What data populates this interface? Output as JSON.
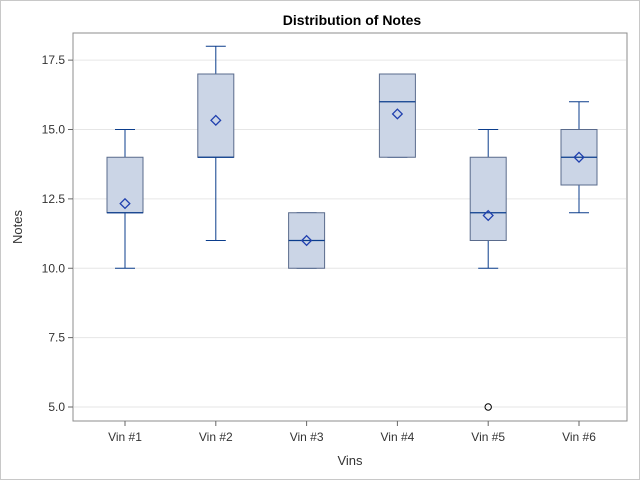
{
  "chart_data": {
    "type": "box",
    "title": "Distribution of Notes",
    "xlabel": "Vins",
    "ylabel": "Notes",
    "ylim": [
      4.6,
      18.5
    ],
    "yticks": [
      "5.0",
      "7.5",
      "10.0",
      "12.5",
      "15.0",
      "17.5"
    ],
    "grid": true,
    "colors": {
      "box_fill": "#cbd5e6",
      "box_stroke": "#5a6b8c",
      "whisker": "#0b3d8c",
      "mean_marker": "#1f3fae",
      "outlier": "#000000",
      "grid": "#e6e6e6"
    },
    "categories": [
      "Vin #1",
      "Vin #2",
      "Vin #3",
      "Vin #4",
      "Vin #5",
      "Vin #6"
    ],
    "boxes": [
      {
        "category": "Vin #1",
        "min": 10,
        "q1": 12,
        "median": 12,
        "q3": 14,
        "max": 15,
        "mean": 12.33,
        "outliers": []
      },
      {
        "category": "Vin #2",
        "min": 11,
        "q1": 14,
        "median": 14,
        "q3": 17,
        "max": 18,
        "mean": 15.33,
        "outliers": []
      },
      {
        "category": "Vin #3",
        "min": 10,
        "q1": 10,
        "median": 11,
        "q3": 12,
        "max": 12,
        "mean": 11,
        "outliers": []
      },
      {
        "category": "Vin #4",
        "min": 14,
        "q1": 14,
        "median": 16,
        "q3": 17,
        "max": 17,
        "mean": 15.56,
        "outliers": []
      },
      {
        "category": "Vin #5",
        "min": 10,
        "q1": 11,
        "median": 12,
        "q3": 14,
        "max": 15,
        "mean": 11.9,
        "outliers": [
          5
        ]
      },
      {
        "category": "Vin #6",
        "min": 12,
        "q1": 13,
        "median": 14,
        "q3": 15,
        "max": 16,
        "mean": 14,
        "outliers": []
      }
    ]
  }
}
